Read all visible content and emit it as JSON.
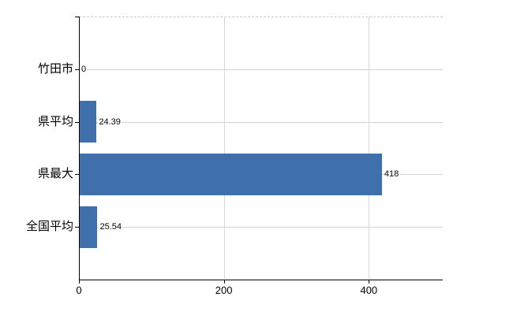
{
  "chart_data": {
    "type": "bar",
    "orientation": "horizontal",
    "title": "",
    "categories": [
      "竹田市",
      "県平均",
      "県最大",
      "全国平均"
    ],
    "values": [
      0,
      24.39,
      418,
      25.54
    ],
    "value_labels": [
      "0",
      "24.39",
      "418",
      "25.54"
    ],
    "x_ticks": [
      0,
      200,
      400
    ],
    "x_tick_labels": [
      "0",
      "200",
      "400"
    ],
    "xlim": [
      0,
      502
    ],
    "grid": true,
    "legend": false,
    "colors": {
      "bar": "#4070ab",
      "axis": "#000000",
      "gridline_horizontal": "#cdd7cd",
      "gridline_vertical": "#d8d8d8",
      "top_border": "#c9c9c9",
      "text": "#000000",
      "background": "#ffffff"
    }
  }
}
